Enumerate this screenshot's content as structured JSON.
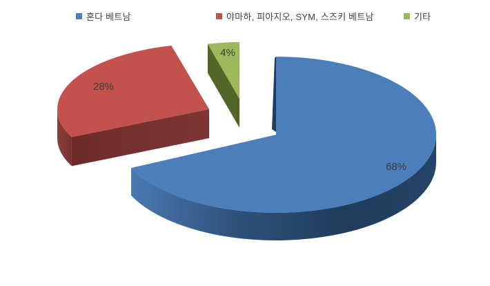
{
  "chart_data": {
    "type": "pie",
    "style": "3d-exploded",
    "title": "",
    "legend_position": "top",
    "unit": "%",
    "start_angle_deg": 0,
    "clockwise": true,
    "background_color": "#ffffff",
    "label_color": "#3a3a3a",
    "legend_text_color": "#404040",
    "series": [
      {
        "label": "혼다 베트남",
        "value": 68,
        "data_label": "68%",
        "color": "#4b7ebb",
        "side_color": "#1f3c5d",
        "exploded": false
      },
      {
        "label": "야마하, 피아지오, SYM, 스즈키 베트남",
        "value": 28,
        "data_label": "28%",
        "color": "#c4514e",
        "side_color": "#6f2d2b",
        "exploded": true
      },
      {
        "label": "기타",
        "value": 4,
        "data_label": "4%",
        "color": "#9cba5b",
        "side_color": "#536527",
        "exploded": true
      }
    ]
  }
}
